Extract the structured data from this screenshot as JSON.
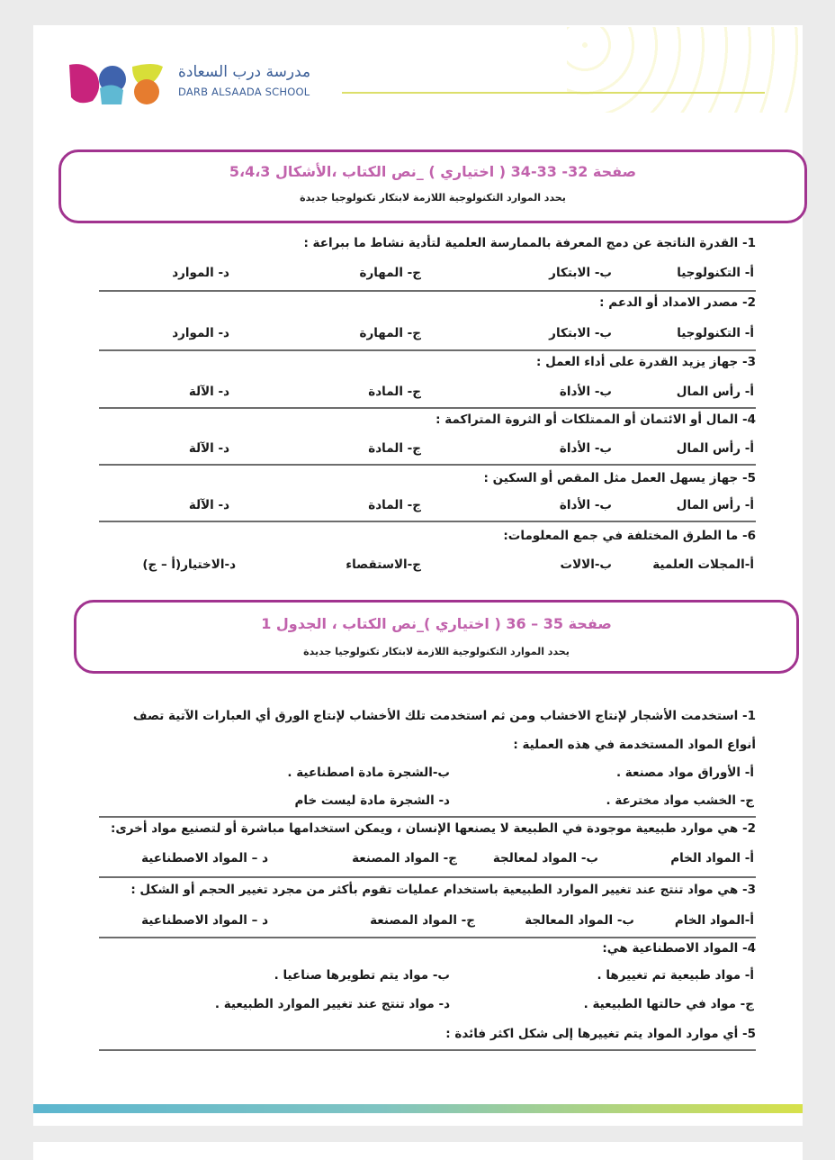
{
  "header": {
    "school_name_ar": "مدرسة درب السعادة",
    "school_name_en": "DARB ALSAADA SCHOOL"
  },
  "colors": {
    "accent": "#a1338f",
    "title": "#c162ac",
    "school": "#3c5f98"
  },
  "section1": {
    "title": "صفحة 32- 33-34 ( اختياري ) _نص الكتاب ،الأشكال 5،4،3",
    "subtitle": "يحدد الموارد التكنولوجية اللازمة لابتكار تكنولوجيا جديدة",
    "questions": [
      {
        "text": "1- القدرة الناتجة عن دمج المعرفة بالممارسة العلمية لتأدية نشاط ما ببراعة :",
        "options": [
          "أ- التكنولوجيا",
          "ب- الابتكار",
          "ج- المهارة",
          "د- الموارد"
        ]
      },
      {
        "text": "2- مصدر الامداد أو الدعم :",
        "options": [
          "أ- التكنولوجيا",
          "ب- الابتكار",
          "ج- المهارة",
          "د- الموارد"
        ]
      },
      {
        "text": "3- جهاز يزيد القدرة على أداء العمل :",
        "options": [
          "أ- رأس المال",
          "ب- الأداة",
          "ج- المادة",
          "د- الآلة"
        ]
      },
      {
        "text": "4- المال أو الائتمان أو الممتلكات أو الثروة المتراكمة :",
        "options": [
          "أ- رأس المال",
          "ب- الأداة",
          "ج- المادة",
          "د- الآلة"
        ]
      },
      {
        "text": "5- جهاز يسهل العمل مثل المقص أو السكين :",
        "options": [
          "أ- رأس المال",
          "ب- الأداة",
          "ج- المادة",
          "د- الآلة"
        ]
      },
      {
        "text": "6- ما الطرق المختلفة في جمع المعلومات:",
        "options": [
          "أ-المجلات العلمية",
          "ب-الالات",
          "ج-الاستقصاء",
          "د-الاختيار(أ – ج)"
        ]
      }
    ]
  },
  "section2": {
    "title": "صفحة 35 – 36 ( اختياري )_نص الكتاب ، الجدول 1",
    "subtitle": "يحدد الموارد التكنولوجية اللازمة لابتكار تكنولوجيا جديدة",
    "q1": {
      "line1": "1- استخدمت الأشجار لإنتاج الاخشاب ومن ثم استخدمت تلك الأخشاب لإنتاج الورق أي العبارات الآتية تصف",
      "line2": "أنواع المواد المستخدمة في هذه العملية :",
      "options": [
        "أ- الأوراق مواد مصنعة .",
        "ب-الشجرة مادة اصطناعية .",
        "ج- الخشب مواد مخترعة .",
        "د- الشجرة مادة ليست خام"
      ]
    },
    "q2": {
      "text": "2- هي موارد طبيعية موجودة في الطبيعة لا يصنعها الإنسان ، ويمكن استخدامها مباشرة أو لتصنيع مواد أخرى:",
      "options": [
        "أ-   المواد الخام",
        "ب- المواد لمعالجة",
        "ج-  المواد المصنعة",
        "د – المواد الاصطناعية"
      ]
    },
    "q3": {
      "text": "3- هي مواد تنتج عند تغيير الموارد الطبيعية باستخدام عمليات تقوم بأكثر من مجرد تغيير الحجم أو الشكل :",
      "options": [
        "أ-المواد الخام",
        "ب- المواد المعالجة",
        "ج-  المواد المصنعة",
        "د – المواد الاصطناعية"
      ]
    },
    "q4": {
      "text": "4- المواد الاصطناعية هي:",
      "options": [
        "أ- مواد طبيعية تم تغييرها .",
        "ب- مواد يتم تطويرها صناعيا .",
        "ج- مواد في حالتها الطبيعية .",
        "د- مواد تنتج عند تغيير الموارد الطبيعية ."
      ]
    },
    "q5": {
      "text": "5- أي موارد المواد يتم تغييرها إلى شكل اكثر فائدة :"
    }
  }
}
